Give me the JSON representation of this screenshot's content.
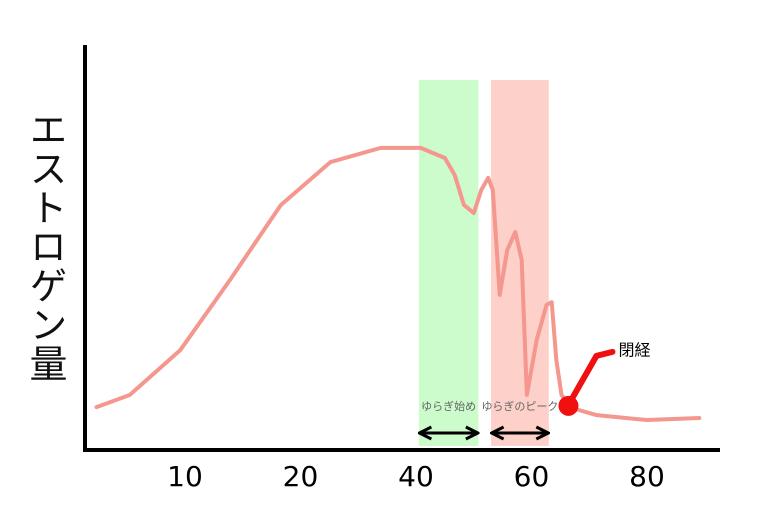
{
  "chart_data": {
    "type": "line",
    "y_label": "エストロゲン量",
    "x": [
      2.3,
      5.2,
      9.6,
      13.9,
      18.3,
      25.2,
      33.9,
      40.8,
      45,
      46.7,
      48.3,
      50,
      51.3,
      52.5,
      53.3,
      54.5,
      55.8,
      57.2,
      58.3,
      59.2,
      60.9,
      62.6,
      63.5,
      64.3,
      65.2,
      66.9,
      71.3,
      80,
      88.6
    ],
    "series": [
      {
        "color": "#f4978e",
        "values": [
          10.6,
          13.6,
          24.7,
          42,
          60.5,
          71.1,
          74.6,
          74.6,
          72.1,
          67.9,
          60.5,
          58.5,
          64.2,
          67.2,
          64.2,
          38.3,
          49.4,
          53.8,
          46.9,
          13.6,
          27.2,
          35.8,
          36.5,
          22.2,
          13.6,
          10.4,
          8.6,
          7.4,
          7.9
        ]
      }
    ],
    "xlim": [
      1.3,
      92
    ],
    "xticks": [
      10,
      20,
      40,
      60,
      80
    ],
    "x_scale": "segmented",
    "ylim": [
      0,
      100
    ],
    "spans": [
      {
        "name": "ゆらぎ始め",
        "color": "#ccfccc",
        "x": [
          40.5,
          50.8
        ]
      },
      {
        "name": "ゆらぎのピーク",
        "color": "#fdd0c9",
        "x": [
          53,
          63
        ]
      }
    ],
    "markers": [
      {
        "label": "閉経",
        "color": "#f01010",
        "x": 66.4,
        "y": 10.9
      }
    ]
  }
}
